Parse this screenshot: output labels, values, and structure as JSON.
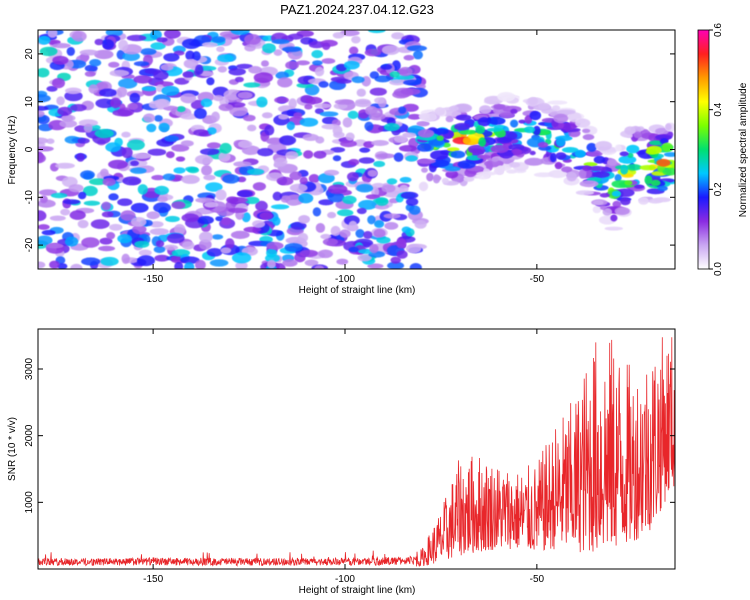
{
  "chart_data": [
    {
      "type": "heatmap",
      "title": "PAZ1.2024.237.04.12.G23",
      "xlabel": "Height of straight line (km)",
      "ylabel": "Frequency (Hz)",
      "xlim": [
        -180,
        -14
      ],
      "ylim": [
        -25,
        25
      ],
      "x_ticks": [
        -150,
        -100,
        -50
      ],
      "y_ticks": [
        -20,
        -10,
        0,
        10,
        20
      ],
      "colorbar": {
        "label": "Normalized spectral amplitude",
        "range": [
          0.0,
          0.6
        ],
        "ticks": [
          0.0,
          0.2,
          0.4,
          0.6
        ],
        "colors": [
          "#ffffff",
          "#c9a6f2",
          "#8a2be2",
          "#1a1aff",
          "#00c8ff",
          "#00e070",
          "#7cff00",
          "#ffff00",
          "#ff9a00",
          "#ff2020",
          "#ff00b4"
        ]
      },
      "features": {
        "noise_region_x": [
          -180,
          -80
        ],
        "noise_freq_range": [
          -25,
          25
        ],
        "signal_track": [
          {
            "x": -80,
            "freq": 0,
            "amp": 0.32
          },
          {
            "x": -75,
            "freq": 0.5,
            "amp": 0.42
          },
          {
            "x": -70,
            "freq": 1,
            "amp": 0.6
          },
          {
            "x": -65,
            "freq": 2,
            "amp": 0.4
          },
          {
            "x": -60,
            "freq": 3,
            "amp": 0.35
          },
          {
            "x": -55,
            "freq": 3.5,
            "amp": 0.3
          },
          {
            "x": -50,
            "freq": 3,
            "amp": 0.33
          },
          {
            "x": -45,
            "freq": 2,
            "amp": 0.35
          },
          {
            "x": -40,
            "freq": 0,
            "amp": 0.32
          },
          {
            "x": -35,
            "freq": -4,
            "amp": 0.35
          },
          {
            "x": -30,
            "freq": -9,
            "amp": 0.38
          },
          {
            "x": -25,
            "freq": -3,
            "amp": 0.5
          },
          {
            "x": -20,
            "freq": -3,
            "amp": 0.6
          },
          {
            "x": -15,
            "freq": -3,
            "amp": 0.55
          }
        ]
      }
    },
    {
      "type": "line",
      "xlabel": "Height of straight line (km)",
      "ylabel": "SNR (10 * v/v)",
      "xlim": [
        -180,
        -14
      ],
      "ylim": [
        0,
        3600
      ],
      "x_ticks": [
        -150,
        -100,
        -50
      ],
      "y_ticks": [
        1000,
        2000,
        3000
      ],
      "line_color": "#e8262a",
      "series": [
        {
          "x": [
            -180,
            -170,
            -160,
            -150,
            -140,
            -130,
            -120,
            -110,
            -100,
            -90,
            -80,
            -75,
            -70,
            -65,
            -60,
            -55,
            -50,
            -45,
            -40,
            -35,
            -30,
            -25,
            -20,
            -15
          ],
          "envelope_low": [
            30,
            30,
            30,
            30,
            30,
            30,
            30,
            30,
            30,
            30,
            40,
            100,
            200,
            250,
            300,
            300,
            250,
            300,
            250,
            250,
            300,
            400,
            600,
            1200
          ],
          "envelope_high": [
            250,
            250,
            250,
            270,
            250,
            260,
            250,
            250,
            260,
            280,
            300,
            900,
            1700,
            1750,
            1600,
            1500,
            1600,
            2200,
            2600,
            3500,
            3500,
            3000,
            3400,
            3600
          ]
        }
      ]
    }
  ]
}
